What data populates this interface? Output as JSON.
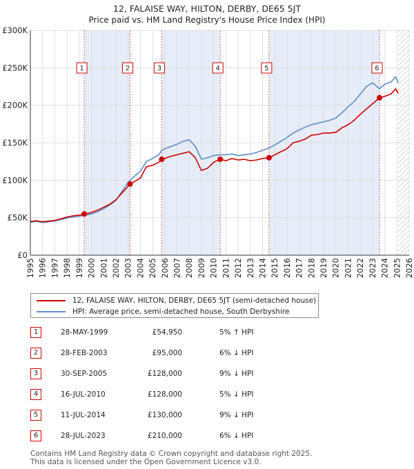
{
  "chart_data": {
    "type": "line",
    "title": "12, FALAISE WAY, HILTON, DERBY, DE65 5JT",
    "subtitle": "Price paid vs. HM Land Registry's House Price Index (HPI)",
    "xlim": [
      1995,
      2026
    ],
    "ylim": [
      0,
      300000
    ],
    "x_ticks": [
      "1995",
      "1996",
      "1997",
      "1998",
      "1999",
      "2000",
      "2001",
      "2002",
      "2003",
      "2004",
      "2005",
      "2006",
      "2007",
      "2008",
      "2009",
      "2010",
      "2011",
      "2012",
      "2013",
      "2014",
      "2015",
      "2016",
      "2017",
      "2018",
      "2019",
      "2020",
      "2021",
      "2022",
      "2023",
      "2024",
      "2025",
      "2026"
    ],
    "y_ticks": [
      {
        "value": 0,
        "label": "£0"
      },
      {
        "value": 50000,
        "label": "£50K"
      },
      {
        "value": 100000,
        "label": "£100K"
      },
      {
        "value": 150000,
        "label": "£150K"
      },
      {
        "value": 200000,
        "label": "£200K"
      },
      {
        "value": 250000,
        "label": "£250K"
      },
      {
        "value": 300000,
        "label": "£300K"
      }
    ],
    "shaded_spans": [
      [
        1999.41,
        2003.16
      ],
      [
        2005.75,
        2010.54
      ],
      [
        2014.53,
        2023.57
      ]
    ],
    "future_hatch_from": 2025.1,
    "series": [
      {
        "name": "12, FALAISE WAY, HILTON, DERBY, DE65 5JT (semi-detached house)",
        "color": "#cc0000",
        "points": [
          [
            1995.0,
            45000
          ],
          [
            1995.5,
            46000
          ],
          [
            1996.0,
            44500
          ],
          [
            1996.5,
            45500
          ],
          [
            1997.0,
            46500
          ],
          [
            1997.5,
            48500
          ],
          [
            1998.0,
            51000
          ],
          [
            1998.5,
            52500
          ],
          [
            1999.0,
            53500
          ],
          [
            1999.41,
            54950
          ],
          [
            2000.0,
            57000
          ],
          [
            2000.5,
            60000
          ],
          [
            2001.0,
            64000
          ],
          [
            2001.5,
            68000
          ],
          [
            2002.0,
            74000
          ],
          [
            2002.5,
            83000
          ],
          [
            2003.16,
            95000
          ],
          [
            2003.5,
            98000
          ],
          [
            2004.0,
            103000
          ],
          [
            2004.5,
            118000
          ],
          [
            2005.0,
            120000
          ],
          [
            2005.5,
            124000
          ],
          [
            2005.75,
            128000
          ],
          [
            2006.0,
            129000
          ],
          [
            2006.5,
            132000
          ],
          [
            2007.0,
            134000
          ],
          [
            2007.5,
            136000
          ],
          [
            2008.0,
            138000
          ],
          [
            2008.5,
            130000
          ],
          [
            2009.0,
            113000
          ],
          [
            2009.5,
            116000
          ],
          [
            2010.0,
            124000
          ],
          [
            2010.54,
            128000
          ],
          [
            2011.0,
            126000
          ],
          [
            2011.5,
            129000
          ],
          [
            2012.0,
            127000
          ],
          [
            2012.5,
            128000
          ],
          [
            2013.0,
            126000
          ],
          [
            2013.5,
            127000
          ],
          [
            2014.0,
            129000
          ],
          [
            2014.53,
            130000
          ],
          [
            2015.0,
            134000
          ],
          [
            2015.5,
            138000
          ],
          [
            2016.0,
            142000
          ],
          [
            2016.5,
            150000
          ],
          [
            2017.0,
            152000
          ],
          [
            2017.5,
            155000
          ],
          [
            2018.0,
            160000
          ],
          [
            2018.5,
            161000
          ],
          [
            2019.0,
            163000
          ],
          [
            2019.5,
            163000
          ],
          [
            2020.0,
            164000
          ],
          [
            2020.5,
            170000
          ],
          [
            2021.0,
            174000
          ],
          [
            2021.5,
            180000
          ],
          [
            2022.0,
            188000
          ],
          [
            2022.5,
            195000
          ],
          [
            2023.0,
            202000
          ],
          [
            2023.57,
            210000
          ],
          [
            2024.0,
            212000
          ],
          [
            2024.5,
            215000
          ],
          [
            2024.9,
            222000
          ],
          [
            2025.1,
            216000
          ]
        ]
      },
      {
        "name": "HPI: Average price, semi-detached house, South Derbyshire",
        "color": "#5b8ec8",
        "points": [
          [
            1995.0,
            44000
          ],
          [
            1995.5,
            45000
          ],
          [
            1996.0,
            43500
          ],
          [
            1996.5,
            44500
          ],
          [
            1997.0,
            45500
          ],
          [
            1997.5,
            47500
          ],
          [
            1998.0,
            49500
          ],
          [
            1998.5,
            51000
          ],
          [
            1999.0,
            52000
          ],
          [
            1999.41,
            53000
          ],
          [
            2000.0,
            55000
          ],
          [
            2000.5,
            58000
          ],
          [
            2001.0,
            62000
          ],
          [
            2001.5,
            67000
          ],
          [
            2002.0,
            73000
          ],
          [
            2002.5,
            85000
          ],
          [
            2003.0,
            97000
          ],
          [
            2003.5,
            105000
          ],
          [
            2004.0,
            112000
          ],
          [
            2004.5,
            125000
          ],
          [
            2005.0,
            129000
          ],
          [
            2005.5,
            134000
          ],
          [
            2005.75,
            140000
          ],
          [
            2006.0,
            142000
          ],
          [
            2006.5,
            145000
          ],
          [
            2007.0,
            148000
          ],
          [
            2007.5,
            152000
          ],
          [
            2008.0,
            154000
          ],
          [
            2008.5,
            145000
          ],
          [
            2009.0,
            128000
          ],
          [
            2009.5,
            130000
          ],
          [
            2010.0,
            133000
          ],
          [
            2010.54,
            134000
          ],
          [
            2011.0,
            134000
          ],
          [
            2011.5,
            135000
          ],
          [
            2012.0,
            133000
          ],
          [
            2012.5,
            134000
          ],
          [
            2013.0,
            135000
          ],
          [
            2013.5,
            137000
          ],
          [
            2014.0,
            140000
          ],
          [
            2014.53,
            143000
          ],
          [
            2015.0,
            147000
          ],
          [
            2015.5,
            152000
          ],
          [
            2016.0,
            157000
          ],
          [
            2016.5,
            163000
          ],
          [
            2017.0,
            167000
          ],
          [
            2017.5,
            171000
          ],
          [
            2018.0,
            174000
          ],
          [
            2018.5,
            176000
          ],
          [
            2019.0,
            178000
          ],
          [
            2019.5,
            180000
          ],
          [
            2020.0,
            183000
          ],
          [
            2020.5,
            190000
          ],
          [
            2021.0,
            198000
          ],
          [
            2021.5,
            205000
          ],
          [
            2022.0,
            215000
          ],
          [
            2022.5,
            225000
          ],
          [
            2023.0,
            230000
          ],
          [
            2023.57,
            222000
          ],
          [
            2024.0,
            228000
          ],
          [
            2024.5,
            231000
          ],
          [
            2024.9,
            238000
          ],
          [
            2025.1,
            230000
          ]
        ]
      }
    ],
    "sales": [
      {
        "id": "1",
        "x": 1999.41,
        "y": 54950
      },
      {
        "id": "2",
        "x": 2003.16,
        "y": 95000
      },
      {
        "id": "3",
        "x": 2005.75,
        "y": 128000
      },
      {
        "id": "4",
        "x": 2010.54,
        "y": 128000
      },
      {
        "id": "5",
        "x": 2014.53,
        "y": 130000
      },
      {
        "id": "6",
        "x": 2023.57,
        "y": 210000
      }
    ]
  },
  "header": {
    "title": "12, FALAISE WAY, HILTON, DERBY, DE65 5JT",
    "subtitle": "Price paid vs. HM Land Registry's House Price Index (HPI)"
  },
  "legend": {
    "property_label": "12, FALAISE WAY, HILTON, DERBY, DE65 5JT (semi-detached house)",
    "hpi_label": "HPI: Average price, semi-detached house, South Derbyshire",
    "property_color": "#cc0000",
    "hpi_color": "#5b8ec8"
  },
  "transactions": [
    {
      "num": "1",
      "date": "28-MAY-1999",
      "price": "£54,950",
      "hpi": "5% ↑ HPI"
    },
    {
      "num": "2",
      "date": "28-FEB-2003",
      "price": "£95,000",
      "hpi": "6% ↓ HPI"
    },
    {
      "num": "3",
      "date": "30-SEP-2005",
      "price": "£128,000",
      "hpi": "9% ↓ HPI"
    },
    {
      "num": "4",
      "date": "16-JUL-2010",
      "price": "£128,000",
      "hpi": "5% ↓ HPI"
    },
    {
      "num": "5",
      "date": "11-JUL-2014",
      "price": "£130,000",
      "hpi": "9% ↓ HPI"
    },
    {
      "num": "6",
      "date": "28-JUL-2023",
      "price": "£210,000",
      "hpi": "6% ↓ HPI"
    }
  ],
  "footer": {
    "line1": "Contains HM Land Registry data © Crown copyright and database right 2025.",
    "line2": "This data is licensed under the Open Government Licence v3.0."
  }
}
